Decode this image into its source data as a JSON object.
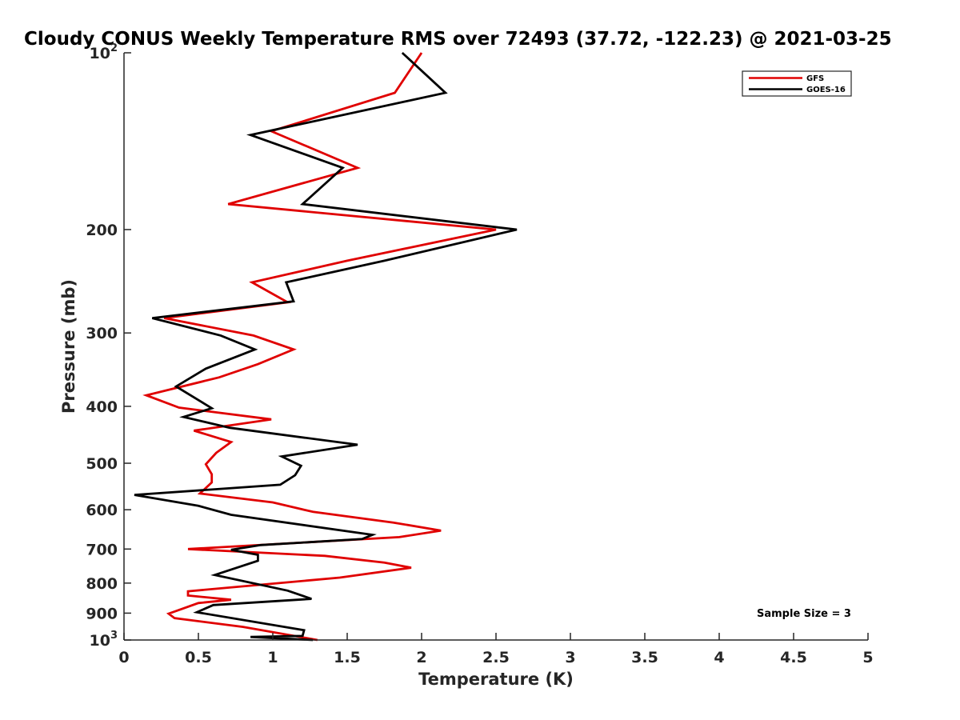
{
  "chart_data": {
    "type": "line",
    "title": "Cloudy CONUS Weekly Temperature RMS over 72493 (37.72, -122.23) @ 2021-03-25",
    "xlabel": "Temperature (K)",
    "ylabel": "Pressure (mb)",
    "xlim": [
      0,
      5
    ],
    "ylim": [
      100,
      1000
    ],
    "y_scale": "log",
    "y_reversed": true,
    "grid": false,
    "legend_position": "top-right",
    "x_ticks": [
      "0",
      "0.5",
      "1",
      "1.5",
      "2",
      "2.5",
      "3",
      "3.5",
      "4",
      "4.5",
      "5"
    ],
    "y_ticks": [
      {
        "value": 100,
        "base": "10",
        "exp": "2"
      },
      {
        "value": 200,
        "base": "200",
        "exp": ""
      },
      {
        "value": 300,
        "base": "300",
        "exp": ""
      },
      {
        "value": 400,
        "base": "400",
        "exp": ""
      },
      {
        "value": 500,
        "base": "500",
        "exp": ""
      },
      {
        "value": 600,
        "base": "600",
        "exp": ""
      },
      {
        "value": 700,
        "base": "700",
        "exp": ""
      },
      {
        "value": 800,
        "base": "800",
        "exp": ""
      },
      {
        "value": 900,
        "base": "900",
        "exp": ""
      },
      {
        "value": 1000,
        "base": "10",
        "exp": "3"
      }
    ],
    "annotation": "Sample Size = 3",
    "series": [
      {
        "name": "GFS",
        "color": "#e00000",
        "points": [
          [
            2.0,
            100
          ],
          [
            1.82,
            117
          ],
          [
            0.99,
            136
          ],
          [
            1.57,
            157
          ],
          [
            0.7,
            181
          ],
          [
            2.5,
            200
          ],
          [
            1.5,
            226
          ],
          [
            0.86,
            246
          ],
          [
            1.1,
            266
          ],
          [
            0.27,
            283
          ],
          [
            0.87,
            303
          ],
          [
            1.14,
            320
          ],
          [
            0.9,
            339
          ],
          [
            0.64,
            357
          ],
          [
            0.15,
            383
          ],
          [
            0.37,
            402
          ],
          [
            0.99,
            421
          ],
          [
            0.47,
            440
          ],
          [
            0.72,
            460
          ],
          [
            0.62,
            480
          ],
          [
            0.55,
            502
          ],
          [
            0.59,
            522
          ],
          [
            0.59,
            539
          ],
          [
            0.51,
            563
          ],
          [
            1.0,
            583
          ],
          [
            1.27,
            605
          ],
          [
            1.81,
            631
          ],
          [
            2.13,
            651
          ],
          [
            1.85,
            668
          ],
          [
            0.43,
            700
          ],
          [
            1.35,
            719
          ],
          [
            1.75,
            738
          ],
          [
            1.93,
            753
          ],
          [
            1.45,
            783
          ],
          [
            0.43,
            826
          ],
          [
            0.43,
            840
          ],
          [
            0.72,
            854
          ],
          [
            0.5,
            865
          ],
          [
            0.3,
            902
          ],
          [
            0.34,
            918
          ],
          [
            0.8,
            950
          ],
          [
            1.3,
            1000
          ]
        ]
      },
      {
        "name": "GOES-16",
        "color": "#000000",
        "points": [
          [
            1.87,
            100
          ],
          [
            2.16,
            117
          ],
          [
            0.85,
            138
          ],
          [
            1.47,
            157
          ],
          [
            1.2,
            181
          ],
          [
            2.64,
            200
          ],
          [
            1.75,
            226
          ],
          [
            1.09,
            246
          ],
          [
            1.14,
            265
          ],
          [
            0.19,
            283
          ],
          [
            0.65,
            303
          ],
          [
            0.88,
            320
          ],
          [
            0.55,
            345
          ],
          [
            0.35,
            370
          ],
          [
            0.52,
            393
          ],
          [
            0.59,
            403
          ],
          [
            0.4,
            417
          ],
          [
            0.71,
            435
          ],
          [
            1.57,
            465
          ],
          [
            1.06,
            487
          ],
          [
            1.19,
            505
          ],
          [
            1.15,
            524
          ],
          [
            1.05,
            544
          ],
          [
            0.07,
            566
          ],
          [
            0.5,
            591
          ],
          [
            0.72,
            612
          ],
          [
            1.67,
            662
          ],
          [
            1.6,
            673
          ],
          [
            0.92,
            689
          ],
          [
            0.72,
            702
          ],
          [
            0.9,
            716
          ],
          [
            0.9,
            733
          ],
          [
            0.61,
            775
          ],
          [
            1.1,
            824
          ],
          [
            1.26,
            851
          ],
          [
            0.6,
            872
          ],
          [
            0.49,
            897
          ],
          [
            1.21,
            962
          ],
          [
            1.2,
            984
          ],
          [
            0.85,
            988
          ],
          [
            1.27,
            1000
          ]
        ]
      }
    ]
  }
}
